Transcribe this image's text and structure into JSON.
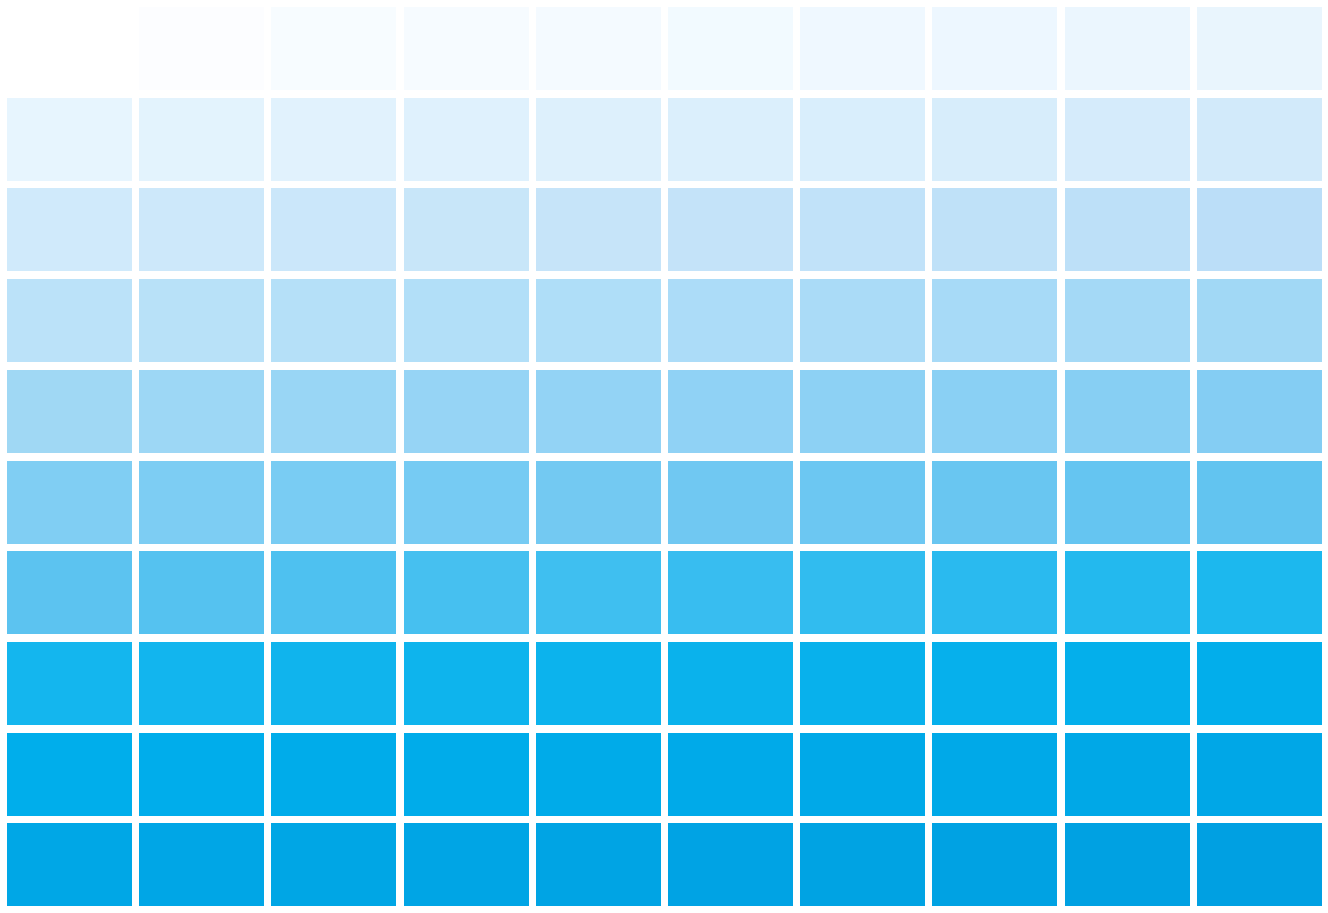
{
  "palette": {
    "rows": [
      [
        "#ffffff",
        "#fcfdff",
        "#f7fcff",
        "#f6fbff",
        "#f4faff",
        "#f2faff",
        "#eff8ff",
        "#edf7ff",
        "#ebf6fe",
        "#e9f5fd"
      ],
      [
        "#e7f5fe",
        "#e3f3fd",
        "#e1f2fd",
        "#dff1fd",
        "#ddf0fc",
        "#dbeffc",
        "#d9eefc",
        "#d7edfb",
        "#d5ebfb",
        "#d2eafa"
      ],
      [
        "#d0eafb",
        "#cde8fa",
        "#cbe7fa",
        "#c8e6f9",
        "#c6e4f9",
        "#c4e3f9",
        "#c1e2f9",
        "#bfe1f8",
        "#bde0f8",
        "#bbdef8"
      ],
      [
        "#bbe2f9",
        "#b8e1f8",
        "#b5e0f8",
        "#b2dff8",
        "#afdef8",
        "#acdcf8",
        "#aadbf7",
        "#a7daf7",
        "#a4d9f6",
        "#a1d8f5"
      ],
      [
        "#a0d8f4",
        "#9dd7f5",
        "#99d6f5",
        "#96d4f5",
        "#93d3f5",
        "#90d2f5",
        "#8dd1f4",
        "#8ad0f4",
        "#87cff3",
        "#84cdf3"
      ],
      [
        "#80cef3",
        "#7dcdf3",
        "#79ccf3",
        "#76cbf3",
        "#73c9f2",
        "#70c8f2",
        "#6cc7f2",
        "#69c6f1",
        "#65c5f1",
        "#62c4f0"
      ],
      [
        "#5cc3f0",
        "#55c2f0",
        "#4ec1f0",
        "#46c0f0",
        "#3fbff0",
        "#38bdf0",
        "#31bcef",
        "#2abaef",
        "#23b9ee",
        "#1cb8ee"
      ],
      [
        "#14b6ee",
        "#12b5ee",
        "#10b4ed",
        "#0eb4ed",
        "#0cb3ed",
        "#0ab2ec",
        "#08b1ec",
        "#06b0ec",
        "#04afeb",
        "#02aeeb"
      ],
      [
        "#00aeeb",
        "#00adeb",
        "#00acea",
        "#00acea",
        "#00abe9",
        "#00aae9",
        "#00a9e8",
        "#00a9e8",
        "#00a8e7",
        "#00a7e7"
      ],
      [
        "#00a7e6",
        "#00a6e6",
        "#00a6e5",
        "#00a5e5",
        "#00a4e4",
        "#00a3e4",
        "#00a3e3",
        "#00a2e3",
        "#00a1e2",
        "#00a0e2"
      ]
    ]
  }
}
